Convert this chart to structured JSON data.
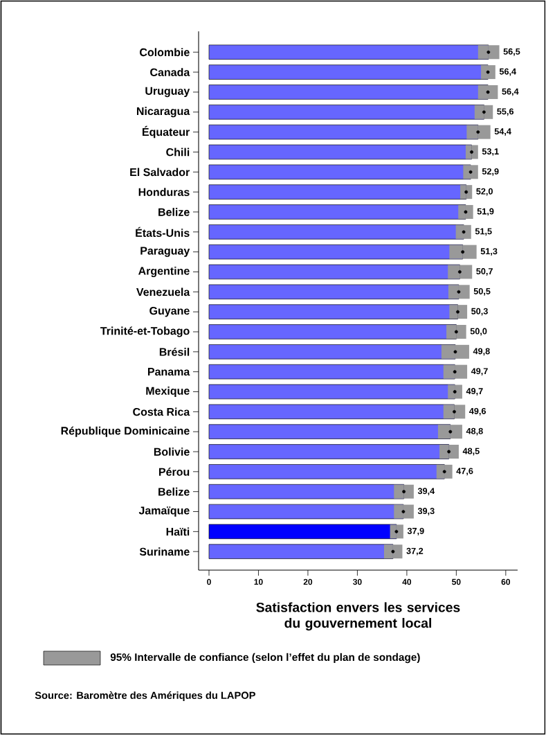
{
  "chart_data": {
    "type": "bar",
    "orientation": "horizontal",
    "categories": [
      "Colombie",
      "Canada",
      "Uruguay",
      "Nicaragua",
      "Équateur",
      "Chili",
      "El Salvador",
      "Honduras",
      "Belize",
      "États-Unis",
      "Paraguay",
      "Argentine",
      "Venezuela",
      "Guyane",
      "Trinité-et-Tobago",
      "Brésil",
      "Panama",
      "Mexique",
      "Costa Rica",
      "République Dominicaine",
      "Bolivie",
      "Pérou",
      "Belize",
      "Jamaïque",
      "Haïti",
      "Suriname"
    ],
    "series": [
      {
        "colors": [
          "#6666ff",
          "#6666ff",
          "#6666ff",
          "#6666ff",
          "#6666ff",
          "#6666ff",
          "#6666ff",
          "#6666ff",
          "#6666ff",
          "#6666ff",
          "#6666ff",
          "#6666ff",
          "#6666ff",
          "#6666ff",
          "#6666ff",
          "#6666ff",
          "#6666ff",
          "#6666ff",
          "#6666ff",
          "#6666ff",
          "#6666ff",
          "#6666ff",
          "#6666ff",
          "#6666ff",
          "#0000ff",
          "#6666ff"
        ],
        "values": [
          56.5,
          56.4,
          56.4,
          55.6,
          54.4,
          53.1,
          52.9,
          52.0,
          51.9,
          51.5,
          51.3,
          50.7,
          50.5,
          50.3,
          50.0,
          49.8,
          49.7,
          49.7,
          49.6,
          48.8,
          48.5,
          47.6,
          39.4,
          39.3,
          37.9,
          37.2
        ],
        "value_labels": [
          "56,5",
          "56,4",
          "56,4",
          "55,6",
          "54,4",
          "53,1",
          "52,9",
          "52,0",
          "51,9",
          "51,5",
          "51,3",
          "50,7",
          "50,5",
          "50,3",
          "50,0",
          "49,8",
          "49,7",
          "49,7",
          "49,6",
          "48,8",
          "48,5",
          "47,6",
          "39,4",
          "39,3",
          "37,9",
          "37,2"
        ],
        "errors": [
          [
            54.4,
            58.7
          ],
          [
            55.0,
            57.9
          ],
          [
            54.4,
            58.4
          ],
          [
            53.7,
            57.4
          ],
          [
            52.1,
            56.9
          ],
          [
            51.9,
            54.4
          ],
          [
            51.4,
            54.4
          ],
          [
            50.8,
            53.2
          ],
          [
            50.4,
            53.4
          ],
          [
            49.9,
            53.0
          ],
          [
            48.6,
            54.1
          ],
          [
            48.3,
            53.2
          ],
          [
            48.4,
            52.7
          ],
          [
            48.6,
            52.2
          ],
          [
            48.0,
            52.0
          ],
          [
            47.0,
            52.6
          ],
          [
            47.4,
            52.2
          ],
          [
            48.3,
            51.2
          ],
          [
            47.4,
            51.8
          ],
          [
            46.3,
            51.2
          ],
          [
            46.6,
            50.5
          ],
          [
            46.0,
            49.2
          ],
          [
            37.4,
            41.4
          ],
          [
            37.4,
            41.4
          ],
          [
            36.6,
            39.3
          ],
          [
            35.4,
            39.1
          ]
        ]
      },
      {
        "type": "scatter",
        "color": "#000000",
        "marker": "circle",
        "values": [
          56.5,
          56.4,
          56.4,
          55.6,
          54.4,
          53.1,
          52.9,
          52.0,
          51.9,
          51.5,
          51.3,
          50.7,
          50.5,
          50.3,
          50.0,
          49.8,
          49.7,
          49.7,
          49.6,
          48.8,
          48.5,
          47.6,
          39.4,
          39.3,
          37.9,
          37.2
        ]
      }
    ],
    "xlabel": "Satisfaction envers les services du gouvernement local",
    "xlim": [
      -2.1,
      62.4
    ],
    "xticks": [
      0,
      10,
      20,
      30,
      40,
      50,
      60
    ],
    "annotations": [
      "95% Intervalle de confiance (selon l’effet du plan de sondage)",
      "Source: Baromètre des Amériques du LAPOP"
    ]
  }
}
